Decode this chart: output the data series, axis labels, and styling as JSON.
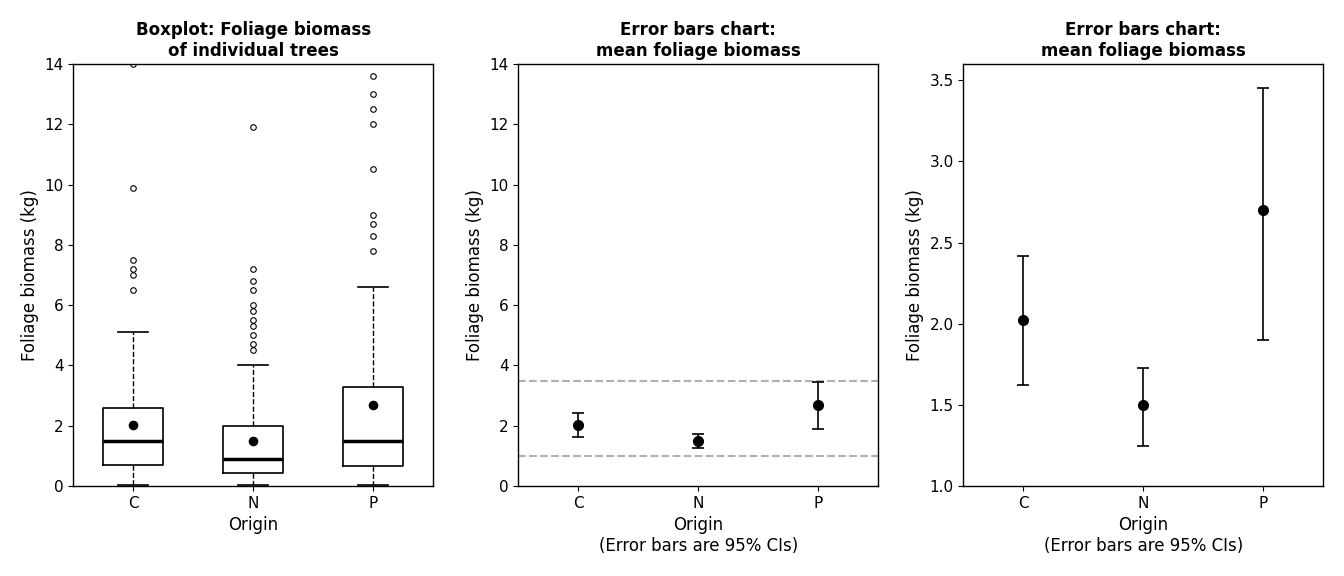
{
  "title1": "Boxplot: Foliage biomass\nof individual trees",
  "title2": "Error bars chart:\nmean foliage biomass",
  "title3": "Error bars chart:\nmean foliage biomass",
  "ylabel": "Foliage biomass (kg)",
  "xlabel1": "Origin",
  "xlabel2": "Origin\n(Error bars are 95% CIs)",
  "xlabel3": "Origin\n(Error bars are 95% CIs)",
  "categories": [
    "C",
    "N",
    "P"
  ],
  "boxplot_stats": [
    {
      "med": 1.5,
      "q1": 0.7,
      "q3": 2.6,
      "whislo": 0.05,
      "whishi": 5.1,
      "fliers": [
        6.5,
        7.0,
        7.2,
        7.5,
        9.9,
        14.0
      ],
      "mean": 2.02
    },
    {
      "med": 0.9,
      "q1": 0.45,
      "q3": 2.0,
      "whislo": 0.05,
      "whishi": 4.0,
      "fliers": [
        4.5,
        4.7,
        5.0,
        5.3,
        5.5,
        5.8,
        6.0,
        6.5,
        6.8,
        7.2,
        11.9
      ],
      "mean": 1.5
    },
    {
      "med": 1.5,
      "q1": 0.65,
      "q3": 3.3,
      "whislo": 0.05,
      "whishi": 6.6,
      "fliers": [
        7.8,
        8.3,
        8.7,
        9.0,
        10.5,
        12.0,
        12.5,
        13.0,
        13.6
      ],
      "mean": 2.7
    }
  ],
  "means": [
    2.02,
    1.5,
    2.7
  ],
  "ci_low": [
    1.62,
    1.25,
    1.9
  ],
  "ci_high": [
    2.42,
    1.73,
    3.45
  ],
  "ylim1": [
    0,
    14
  ],
  "ylim2": [
    0,
    14
  ],
  "ylim3": [
    1.0,
    3.6
  ],
  "yticks1": [
    0,
    2,
    4,
    6,
    8,
    10,
    12,
    14
  ],
  "yticks2": [
    0,
    2,
    4,
    6,
    8,
    10,
    12,
    14
  ],
  "yticks3": [
    1.0,
    1.5,
    2.0,
    2.5,
    3.0,
    3.5
  ],
  "dashed_lines": [
    1.0,
    3.5
  ],
  "dashed_color": "#b0b0b0",
  "bg_color": "#ffffff"
}
